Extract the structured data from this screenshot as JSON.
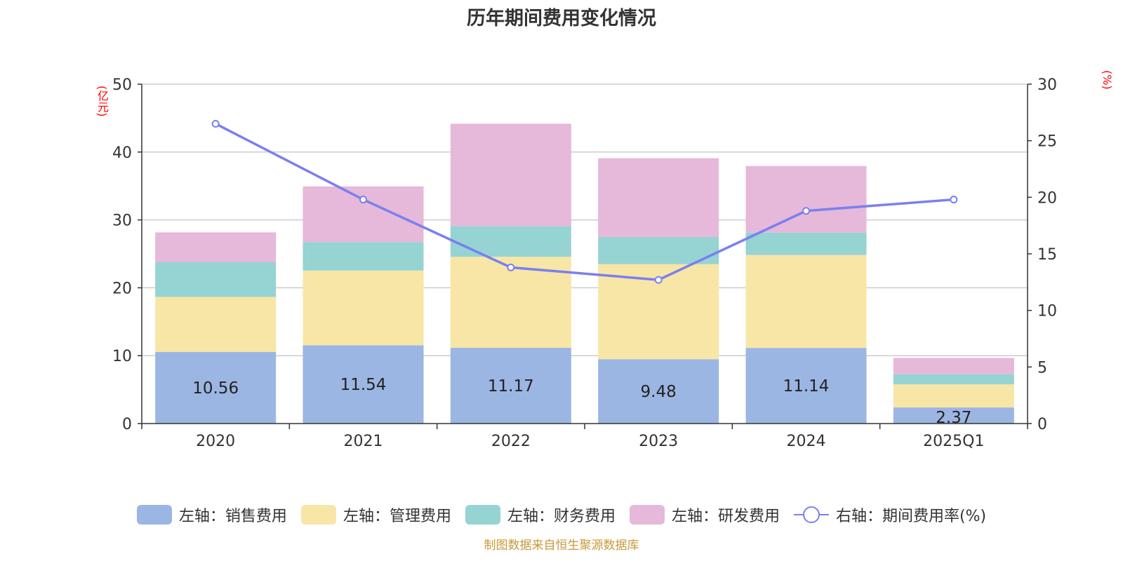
{
  "chart_data": {
    "type": "bar",
    "title": "历年期间费用变化情况",
    "categories": [
      "2020",
      "2021",
      "2022",
      "2023",
      "2024",
      "2025Q1"
    ],
    "series": [
      {
        "name": "左轴：销售费用",
        "axis": "left",
        "stack": true,
        "values": [
          10.56,
          11.54,
          11.17,
          9.48,
          11.14,
          2.37
        ],
        "color": "#9bb6e2"
      },
      {
        "name": "左轴：管理费用",
        "axis": "left",
        "stack": true,
        "values": [
          8.1,
          11.0,
          13.4,
          14.0,
          13.7,
          3.4
        ],
        "color": "#f7e6a6"
      },
      {
        "name": "左轴：财务费用",
        "axis": "left",
        "stack": true,
        "values": [
          5.1,
          4.2,
          4.5,
          4.0,
          3.3,
          1.5
        ],
        "color": "#96d3d3"
      },
      {
        "name": "左轴：研发费用",
        "axis": "left",
        "stack": true,
        "values": [
          4.4,
          8.2,
          15.1,
          11.6,
          9.8,
          2.4
        ],
        "color": "#e6b8d9"
      },
      {
        "name": "右轴：期间费用率(%)",
        "axis": "right",
        "type": "line",
        "values": [
          26.5,
          19.8,
          13.8,
          12.7,
          18.8,
          19.8
        ],
        "color": "#7b7ff0"
      }
    ],
    "data_labels": [
      "10.56",
      "11.54",
      "11.17",
      "9.48",
      "11.14",
      "2.37"
    ],
    "y_left": {
      "unit": "(亿元)",
      "ylim": [
        0,
        50
      ],
      "ticks": [
        0,
        10,
        20,
        30,
        40,
        50
      ]
    },
    "y_right": {
      "unit": "(%)",
      "ylim": [
        0,
        30
      ],
      "ticks": [
        0,
        5,
        10,
        15,
        20,
        25,
        30
      ]
    },
    "grid": true,
    "legend_position": "bottom"
  },
  "source": "制图数据来自恒生聚源数据库"
}
